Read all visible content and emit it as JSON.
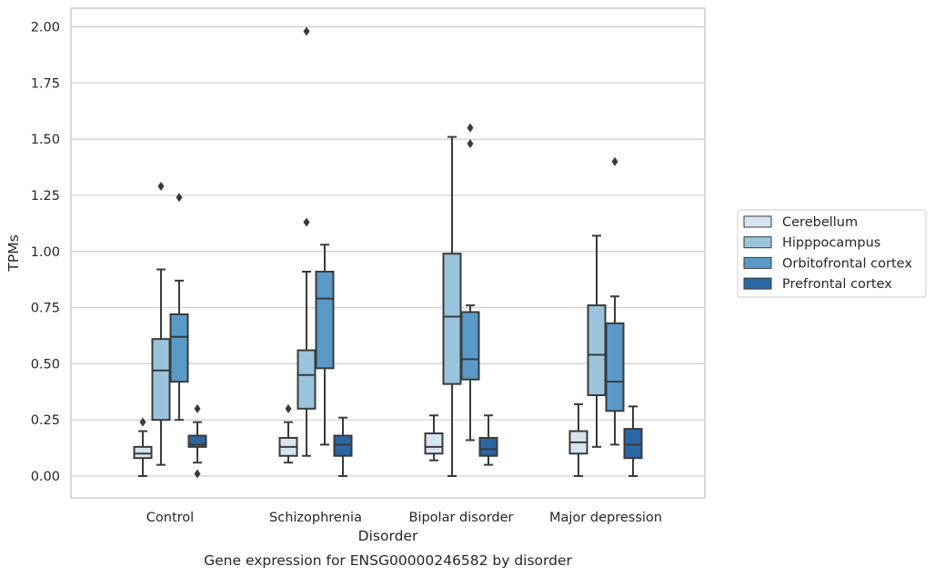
{
  "chart_data": {
    "type": "box",
    "title": "",
    "caption": "Gene expression for ENSG00000246582 by disorder",
    "xlabel": "Disorder",
    "ylabel": "TPMs",
    "ylim": [
      -0.1,
      2.08
    ],
    "yticks": [
      "0.00",
      "0.25",
      "0.50",
      "0.75",
      "1.00",
      "1.25",
      "1.50",
      "1.75",
      "2.00"
    ],
    "grid": "horizontal",
    "legend_position": "right-outside",
    "categories": [
      "Control",
      "Schizophrenia",
      "Bipolar disorder",
      "Major depression"
    ],
    "series": [
      {
        "name": "Cerebellum",
        "color": "#d6e4f0",
        "boxes": [
          {
            "whisker_low": 0.0,
            "q1": 0.08,
            "median": 0.1,
            "q3": 0.13,
            "whisker_high": 0.2,
            "outliers": [
              0.24
            ]
          },
          {
            "whisker_low": 0.06,
            "q1": 0.09,
            "median": 0.13,
            "q3": 0.17,
            "whisker_high": 0.24,
            "outliers": [
              0.3
            ]
          },
          {
            "whisker_low": 0.07,
            "q1": 0.1,
            "median": 0.13,
            "q3": 0.19,
            "whisker_high": 0.27,
            "outliers": []
          },
          {
            "whisker_low": 0.0,
            "q1": 0.1,
            "median": 0.15,
            "q3": 0.2,
            "whisker_high": 0.32,
            "outliers": []
          }
        ]
      },
      {
        "name": "Hipppocampus",
        "color": "#9ac4dc",
        "boxes": [
          {
            "whisker_low": 0.05,
            "q1": 0.25,
            "median": 0.47,
            "q3": 0.61,
            "whisker_high": 0.92,
            "outliers": [
              1.29
            ]
          },
          {
            "whisker_low": 0.09,
            "q1": 0.3,
            "median": 0.45,
            "q3": 0.56,
            "whisker_high": 0.91,
            "outliers": [
              1.13,
              1.98
            ]
          },
          {
            "whisker_low": 0.0,
            "q1": 0.41,
            "median": 0.71,
            "q3": 0.99,
            "whisker_high": 1.51,
            "outliers": []
          },
          {
            "whisker_low": 0.13,
            "q1": 0.36,
            "median": 0.54,
            "q3": 0.76,
            "whisker_high": 1.07,
            "outliers": []
          }
        ]
      },
      {
        "name": "Orbitofrontal cortex",
        "color": "#5a9ac8",
        "boxes": [
          {
            "whisker_low": 0.25,
            "q1": 0.42,
            "median": 0.62,
            "q3": 0.72,
            "whisker_high": 0.87,
            "outliers": [
              1.24
            ]
          },
          {
            "whisker_low": 0.14,
            "q1": 0.48,
            "median": 0.79,
            "q3": 0.91,
            "whisker_high": 1.03,
            "outliers": []
          },
          {
            "whisker_low": 0.16,
            "q1": 0.43,
            "median": 0.52,
            "q3": 0.73,
            "whisker_high": 0.76,
            "outliers": [
              1.48,
              1.55
            ]
          },
          {
            "whisker_low": 0.14,
            "q1": 0.29,
            "median": 0.42,
            "q3": 0.68,
            "whisker_high": 0.8,
            "outliers": [
              1.4
            ]
          }
        ]
      },
      {
        "name": "Prefrontal cortex",
        "color": "#2a67a3",
        "boxes": [
          {
            "whisker_low": 0.06,
            "q1": 0.13,
            "median": 0.14,
            "q3": 0.18,
            "whisker_high": 0.24,
            "outliers": [
              0.3,
              0.01
            ]
          },
          {
            "whisker_low": 0.0,
            "q1": 0.09,
            "median": 0.14,
            "q3": 0.18,
            "whisker_high": 0.26,
            "outliers": []
          },
          {
            "whisker_low": 0.05,
            "q1": 0.09,
            "median": 0.12,
            "q3": 0.17,
            "whisker_high": 0.27,
            "outliers": []
          },
          {
            "whisker_low": 0.0,
            "q1": 0.08,
            "median": 0.14,
            "q3": 0.21,
            "whisker_high": 0.31,
            "outliers": []
          }
        ]
      }
    ]
  }
}
